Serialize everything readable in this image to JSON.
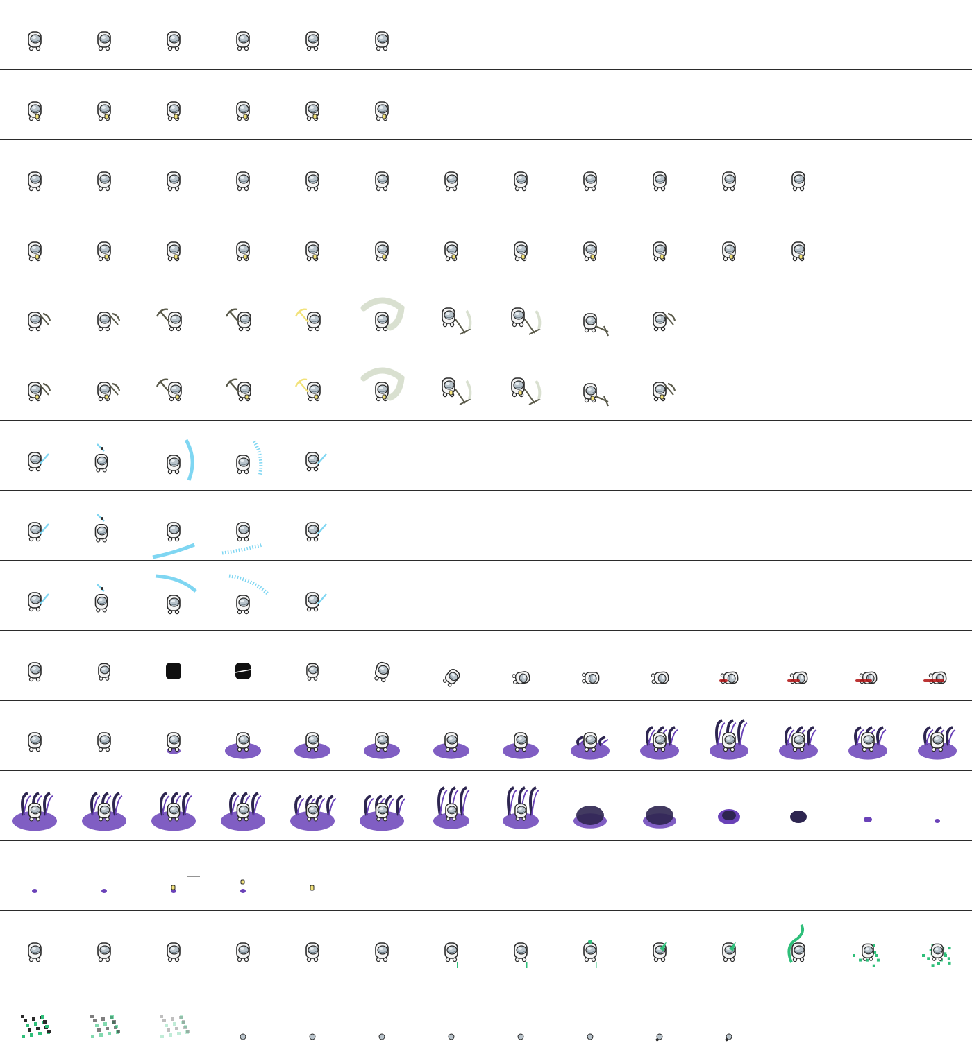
{
  "sheet": {
    "title": "",
    "background": "#ffffff",
    "divider_color": "#2b2b2b",
    "colors": {
      "body": "#f4f4f4",
      "outline": "#2a2a2a",
      "dome": "#b9c4cc",
      "dome_dark": "#6f7f8a",
      "lantern": "#f2e27a",
      "pickaxe": "#5a5a4a",
      "pickaxe_swoosh": "#d9e0d0",
      "ice": "#7fd6f2",
      "shadow": "#101010",
      "blood": "#b01010",
      "void": "#6a42b8",
      "void_dark": "#2d2550",
      "heal": "#2fbf7a"
    }
  },
  "rows": [
    {
      "name": "idle",
      "frames": [
        "idle",
        "idle",
        "idle",
        "idle",
        "idle",
        "idle"
      ]
    },
    {
      "name": "idle-lantern",
      "frames": [
        "idle-lantern",
        "idle-lantern",
        "idle-lantern",
        "idle-lantern",
        "idle-lantern",
        "idle-lantern"
      ]
    },
    {
      "name": "walk",
      "frames": [
        "idle",
        "idle",
        "idle",
        "idle",
        "idle",
        "idle",
        "idle",
        "idle",
        "idle",
        "idle",
        "idle",
        "idle"
      ]
    },
    {
      "name": "walk-lantern",
      "frames": [
        "idle-lantern",
        "idle-lantern",
        "idle-lantern",
        "idle-lantern",
        "idle-lantern",
        "idle-lantern",
        "idle-lantern",
        "idle-lantern",
        "idle-lantern",
        "idle-lantern",
        "idle-lantern",
        "idle-lantern"
      ]
    },
    {
      "name": "mine",
      "frames": [
        "pick-ready",
        "pick-ready",
        "pick-raise",
        "pick-raise",
        "pick-raise-glow",
        "pick-swoosh",
        "pick-strike",
        "pick-strike2",
        "pick-down",
        "pick-ready"
      ]
    },
    {
      "name": "mine-lantern",
      "frames": [
        "pick-ready-l",
        "pick-ready-l",
        "pick-raise-l",
        "pick-raise-l",
        "pick-raise-glow-l",
        "pick-swoosh-l",
        "pick-strike-l",
        "pick-strike2-l",
        "pick-down-l",
        "pick-ready-l"
      ]
    },
    {
      "name": "ice-slash-side",
      "frames": [
        "ice-ready",
        "ice-up",
        "ice-arc-v",
        "ice-spray-v",
        "ice-ready"
      ]
    },
    {
      "name": "ice-slash-low",
      "frames": [
        "ice-ready",
        "ice-up",
        "ice-arc-low",
        "ice-spray-low",
        "ice-ready"
      ]
    },
    {
      "name": "ice-slash-high",
      "frames": [
        "ice-ready",
        "ice-up",
        "ice-arc-high",
        "ice-spray-high",
        "ice-ready"
      ]
    },
    {
      "name": "death",
      "frames": [
        "idle",
        "idle-small",
        "silhouette",
        "silhouette-split",
        "idle-small",
        "tilt",
        "fall1",
        "fall2",
        "fall3",
        "fall4",
        "fall-blood1",
        "fall-blood2",
        "fall-blood3",
        "fall-blood4"
      ]
    },
    {
      "name": "void-rise",
      "frames": [
        "idle",
        "idle",
        "void-start",
        "void-pool",
        "void-pool",
        "void-pool",
        "void-pool",
        "void-pool",
        "void-grow",
        "void-tendrils",
        "void-tendrils-tall",
        "void-tendrils",
        "void-tendrils",
        "void-tendrils"
      ]
    },
    {
      "name": "void-consume",
      "frames": [
        "void-big",
        "void-big",
        "void-big",
        "void-big",
        "void-wide",
        "void-wide",
        "void-tall",
        "void-tall",
        "void-dark",
        "void-dark",
        "void-small",
        "void-smaller",
        "void-tiny",
        "void-dot"
      ]
    },
    {
      "name": "void-end",
      "frames": [
        "void-dot",
        "void-dot",
        "lantern-dot",
        "lantern-dot-bar",
        "lantern-only"
      ]
    },
    {
      "name": "heal",
      "frames": [
        "idle",
        "idle",
        "idle",
        "idle",
        "idle",
        "idle",
        "heal-drip",
        "heal-drip",
        "heal-spark",
        "heal-leaf",
        "heal-leaf",
        "heal-swirl",
        "heal-burst",
        "heal-burst-big"
      ]
    },
    {
      "name": "heal-fade",
      "frames": [
        "heal-cloud",
        "heal-cloud-fade",
        "heal-cloud-faint",
        "head",
        "head",
        "head",
        "head",
        "head",
        "head-tilt",
        "head-roll",
        "head-roll"
      ]
    }
  ]
}
